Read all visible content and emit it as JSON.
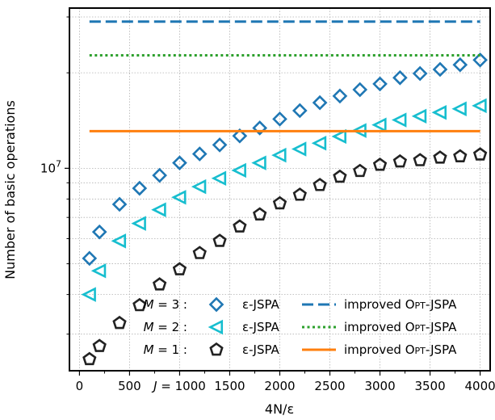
{
  "chart_data": {
    "type": "scatter",
    "title": "",
    "xlabel": "4N/ε",
    "ylabel": "Number of basic operations",
    "x_tick_labels": [
      "0",
      "500",
      "J = 1000",
      "1500",
      "2000",
      "2500",
      "3000",
      "3500",
      "4000"
    ],
    "x_tick_values": [
      0,
      500,
      1000,
      1500,
      2000,
      2500,
      3000,
      3500,
      4000
    ],
    "xlim": [
      -100,
      4100
    ],
    "y_scale": "log",
    "ylim": [
      2300000,
      32000000
    ],
    "y_tick_labels": [
      "10^7"
    ],
    "y_tick_values": [
      10000000
    ],
    "grid": true,
    "legend_position": "lower-right",
    "x": [
      100,
      200,
      400,
      600,
      800,
      1000,
      1200,
      1400,
      1600,
      1800,
      2000,
      2200,
      2400,
      2600,
      2800,
      3000,
      3200,
      3400,
      3600,
      3800,
      4000
    ],
    "series": [
      {
        "group": "M = 3 :",
        "name": "ε-JSPA",
        "kind": "points",
        "marker": "diamond",
        "color": "#1f77b4",
        "values": [
          5200000,
          6300000,
          7700000,
          8650000,
          9500000,
          10400000,
          11100000,
          11850000,
          12650000,
          13400000,
          14300000,
          15200000,
          16100000,
          16900000,
          17700000,
          18450000,
          19300000,
          19900000,
          20500000,
          21200000,
          21950000
        ]
      },
      {
        "group": "M = 2 :",
        "name": "ε-JSPA",
        "kind": "points",
        "marker": "triangle-left",
        "color": "#17becf",
        "values": [
          4000000,
          4750000,
          5900000,
          6700000,
          7400000,
          8100000,
          8750000,
          9300000,
          9850000,
          10400000,
          11000000,
          11500000,
          12000000,
          12600000,
          13150000,
          13700000,
          14200000,
          14600000,
          15000000,
          15400000,
          15750000
        ]
      },
      {
        "group": "M = 1 :",
        "name": "ε-JSPA",
        "kind": "points",
        "marker": "pentagon",
        "color": "#222222",
        "values": [
          2500000,
          2750000,
          3250000,
          3700000,
          4300000,
          4800000,
          5400000,
          5900000,
          6550000,
          7150000,
          7750000,
          8250000,
          8850000,
          9400000,
          9800000,
          10250000,
          10500000,
          10600000,
          10800000,
          10900000,
          11050000
        ]
      },
      {
        "group": "M = 3 :",
        "name": "improved OPT-JSPA",
        "kind": "line",
        "style": "dashed",
        "color": "#1f77b4",
        "x": [
          100,
          4000
        ],
        "values": [
          29000000,
          29000000
        ]
      },
      {
        "group": "M = 2 :",
        "name": "improved OPT-JSPA",
        "kind": "line",
        "style": "dotted",
        "color": "#2ca02c",
        "x": [
          100,
          4000
        ],
        "values": [
          22700000,
          22700000
        ]
      },
      {
        "group": "M = 1 :",
        "name": "improved OPT-JSPA",
        "kind": "line",
        "style": "solid",
        "color": "#ff7f0e",
        "x": [
          100,
          4000
        ],
        "values": [
          13100000,
          13100000
        ]
      }
    ]
  }
}
